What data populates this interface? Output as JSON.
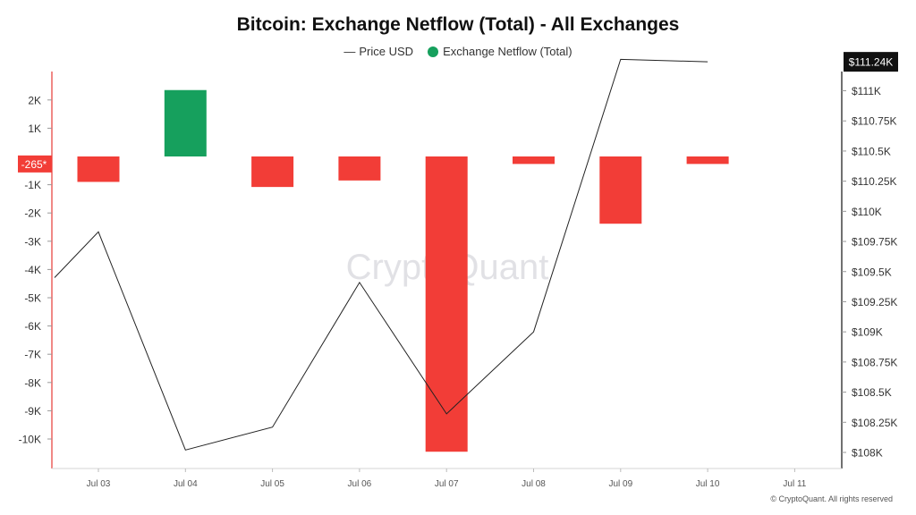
{
  "chart_data": {
    "type": "bar",
    "title": "Bitcoin: Exchange Netflow (Total) - All Exchanges",
    "categories": [
      "Jul 03",
      "Jul 04",
      "Jul 05",
      "Jul 06",
      "Jul 07",
      "Jul 08",
      "Jul 09",
      "Jul 10",
      "Jul 11"
    ],
    "series": [
      {
        "name": "Exchange Netflow (Total)",
        "type": "bar",
        "axis": "left",
        "values": [
          -900,
          2350,
          -1080,
          -850,
          -10450,
          -265,
          -2380,
          -265,
          null
        ],
        "positive_color": "#16a05d",
        "negative_color": "#f23d37"
      },
      {
        "name": "Price USD",
        "type": "line",
        "axis": "right",
        "x": [
          "Jul 02",
          "Jul 03",
          "Jul 04",
          "Jul 05",
          "Jul 06",
          "Jul 07",
          "Jul 08",
          "Jul 09",
          "Jul 10"
        ],
        "values": [
          109450,
          109830,
          108020,
          108210,
          109410,
          108320,
          109000,
          111260,
          111240
        ],
        "color": "#222222"
      }
    ],
    "left_axis": {
      "ticks": [
        2000,
        1000,
        -1000,
        -2000,
        -3000,
        -4000,
        -5000,
        -6000,
        -7000,
        -8000,
        -9000,
        -10000
      ],
      "tick_labels": [
        "2K",
        "1K",
        "-1K",
        "-2K",
        "-3K",
        "-4K",
        "-5K",
        "-6K",
        "-7K",
        "-8K",
        "-9K",
        "-10K"
      ],
      "range": [
        -11000,
        3000
      ]
    },
    "right_axis": {
      "ticks": [
        111000,
        110750,
        110500,
        110250,
        110000,
        109750,
        109500,
        109250,
        109000,
        108750,
        108500,
        108250,
        108000
      ],
      "tick_labels": [
        "$111K",
        "$110.75K",
        "$110.5K",
        "$110.25K",
        "$110K",
        "$109.75K",
        "$109.5K",
        "$109.25K",
        "$109K",
        "$108.75K",
        "$108.5K",
        "$108.25K",
        "$108K"
      ],
      "range": [
        107900,
        111500
      ]
    },
    "marker_left": {
      "value": -265,
      "label": "-265*",
      "color": "#f23d37"
    },
    "marker_right": {
      "value": 111240,
      "label": "$111.24K",
      "color": "#111111"
    },
    "legend": [
      {
        "label": "Price USD",
        "symbol": "—",
        "color": "#333333"
      },
      {
        "label": "Exchange Netflow (Total)",
        "symbol": "●",
        "color": "#16a05d"
      }
    ],
    "legend_position": "top-center",
    "watermark": "CryptoQuant",
    "grid": false
  },
  "copyright": "© CryptoQuant. All rights reserved"
}
